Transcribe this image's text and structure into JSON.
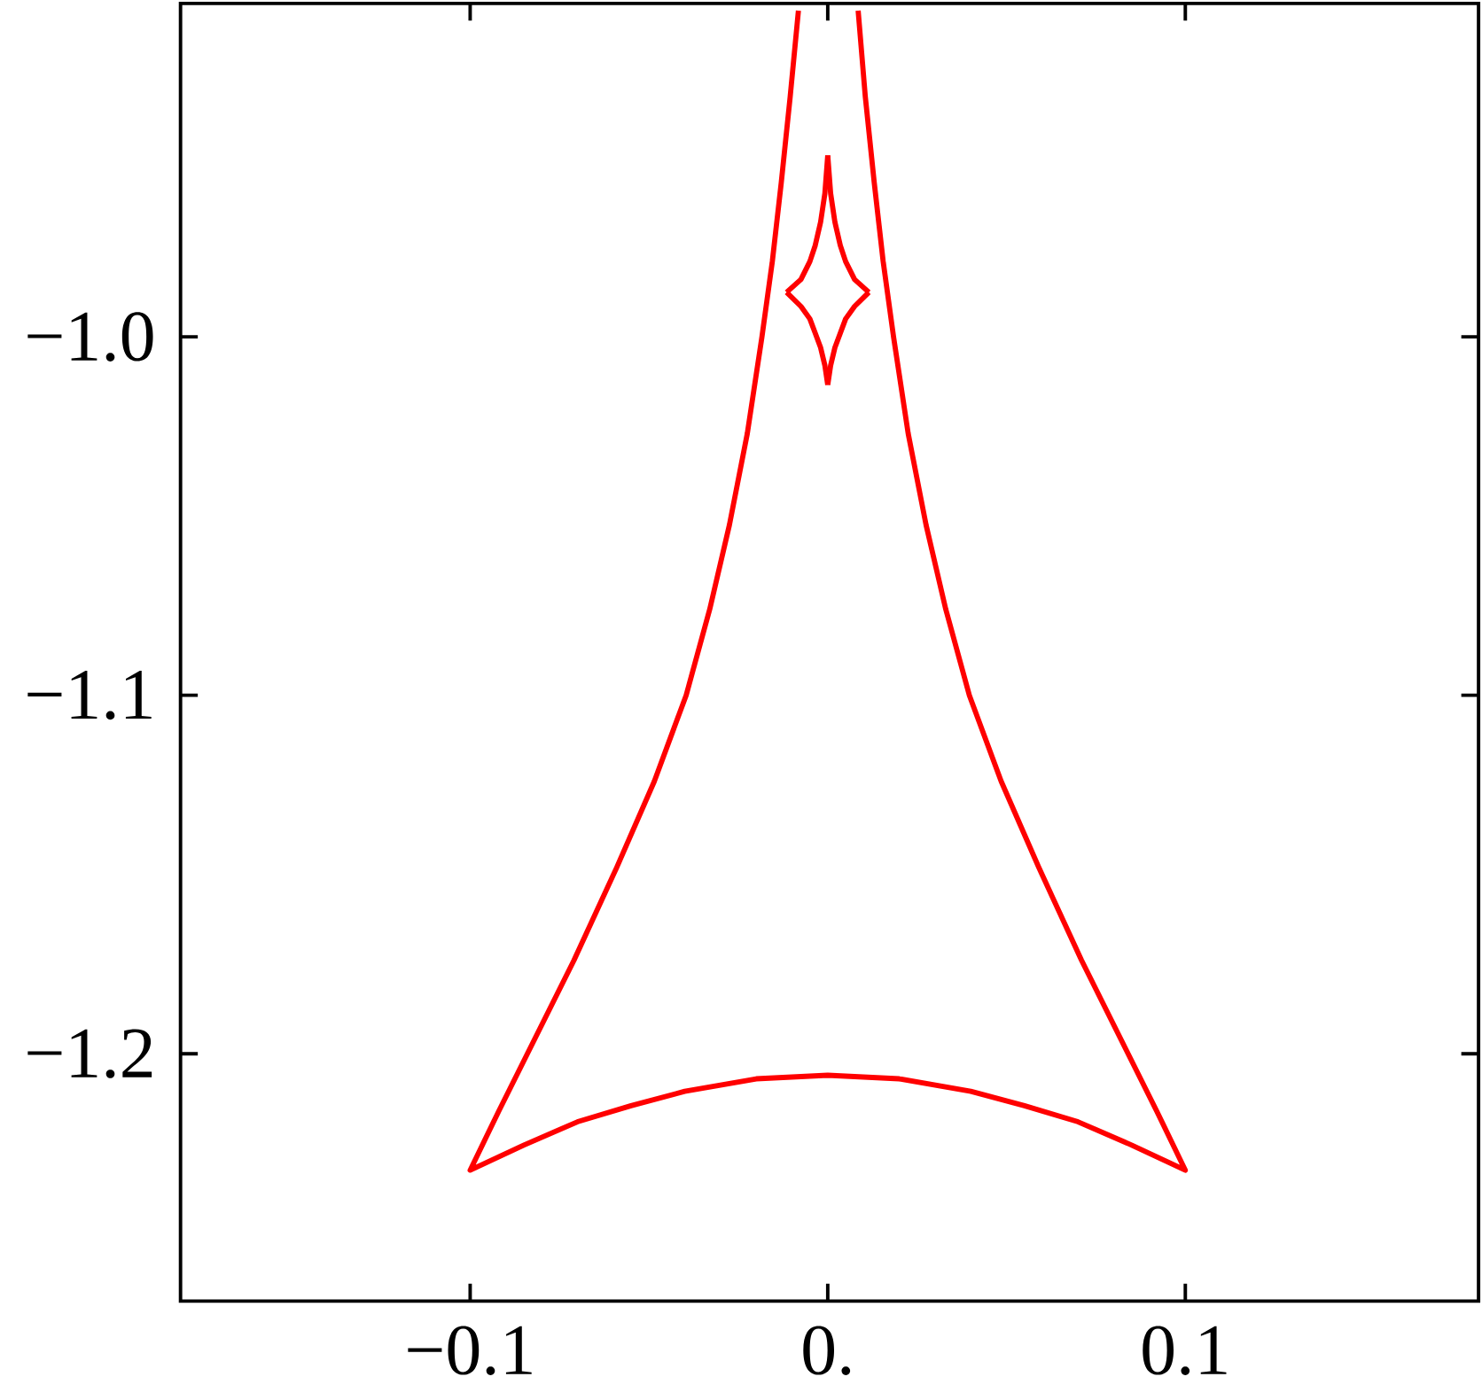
{
  "chart_data": {
    "type": "line",
    "xlim": [
      -0.181,
      0.182
    ],
    "ylim": [
      -1.269,
      -0.907
    ],
    "xticks": [
      {
        "value": -0.1,
        "label": "−0.1"
      },
      {
        "value": 0,
        "label": "0."
      },
      {
        "value": 0.1,
        "label": "0.1"
      }
    ],
    "yticks": [
      {
        "value": -1.0,
        "label": "−1.0"
      },
      {
        "value": -1.1,
        "label": "−1.1"
      },
      {
        "value": -1.2,
        "label": "−1.2"
      }
    ],
    "grid": false,
    "line_style": "solid",
    "marker": "none",
    "series": [
      {
        "color": "#ff0000",
        "x": [
          -0.0082,
          -0.0105,
          -0.013,
          -0.0155,
          -0.0184,
          -0.0225,
          -0.0275,
          -0.033,
          -0.0396,
          -0.0485,
          -0.059,
          -0.071,
          -0.084,
          -0.092,
          -0.1,
          -0.085,
          -0.07,
          -0.055,
          -0.04,
          -0.02,
          0,
          0.02,
          0.04,
          0.055,
          0.07,
          0.085,
          0.1,
          0.092,
          0.084,
          0.071,
          0.059,
          0.0485,
          0.0396,
          0.033,
          0.0275,
          0.0225,
          0.0184,
          0.0155,
          0.013,
          0.0105,
          0.0085
        ],
        "values": [
          -0.909,
          -0.933,
          -0.957,
          -0.979,
          -1.0,
          -1.027,
          -1.0525,
          -1.076,
          -1.1,
          -1.124,
          -1.148,
          -1.174,
          -1.2,
          -1.216,
          -1.2325,
          -1.2255,
          -1.219,
          -1.2145,
          -1.2105,
          -1.207,
          -1.206,
          -1.207,
          -1.2105,
          -1.2145,
          -1.219,
          -1.2255,
          -1.2325,
          -1.216,
          -1.2,
          -1.174,
          -1.148,
          -1.124,
          -1.1,
          -1.076,
          -1.0525,
          -1.027,
          -1.0,
          -0.979,
          -0.957,
          -0.933,
          -0.909
        ]
      },
      {
        "color": "#ff0000",
        "x": [
          0,
          0.0008,
          0.002,
          0.0035,
          0.005,
          0.0075,
          0.0115
        ],
        "values": [
          -0.9494,
          -0.96,
          -0.968,
          -0.9745,
          -0.979,
          -0.984,
          -0.9876
        ]
      },
      {
        "color": "#ff0000",
        "x": [
          0.0115,
          0.0075,
          0.005,
          0.0035,
          0.002,
          0.0008,
          0
        ],
        "values": [
          -0.9876,
          -0.9915,
          -0.995,
          -0.999,
          -1.003,
          -1.008,
          -1.0134
        ]
      },
      {
        "color": "#ff0000",
        "x": [
          0,
          -0.0008,
          -0.002,
          -0.0035,
          -0.005,
          -0.0075,
          -0.0115
        ],
        "values": [
          -1.0134,
          -1.008,
          -1.003,
          -0.999,
          -0.995,
          -0.9915,
          -0.9876
        ]
      },
      {
        "color": "#ff0000",
        "x": [
          -0.0115,
          -0.0075,
          -0.005,
          -0.0035,
          -0.002,
          -0.0008,
          0
        ],
        "values": [
          -0.9876,
          -0.984,
          -0.979,
          -0.9745,
          -0.968,
          -0.96,
          -0.9494
        ]
      }
    ]
  }
}
